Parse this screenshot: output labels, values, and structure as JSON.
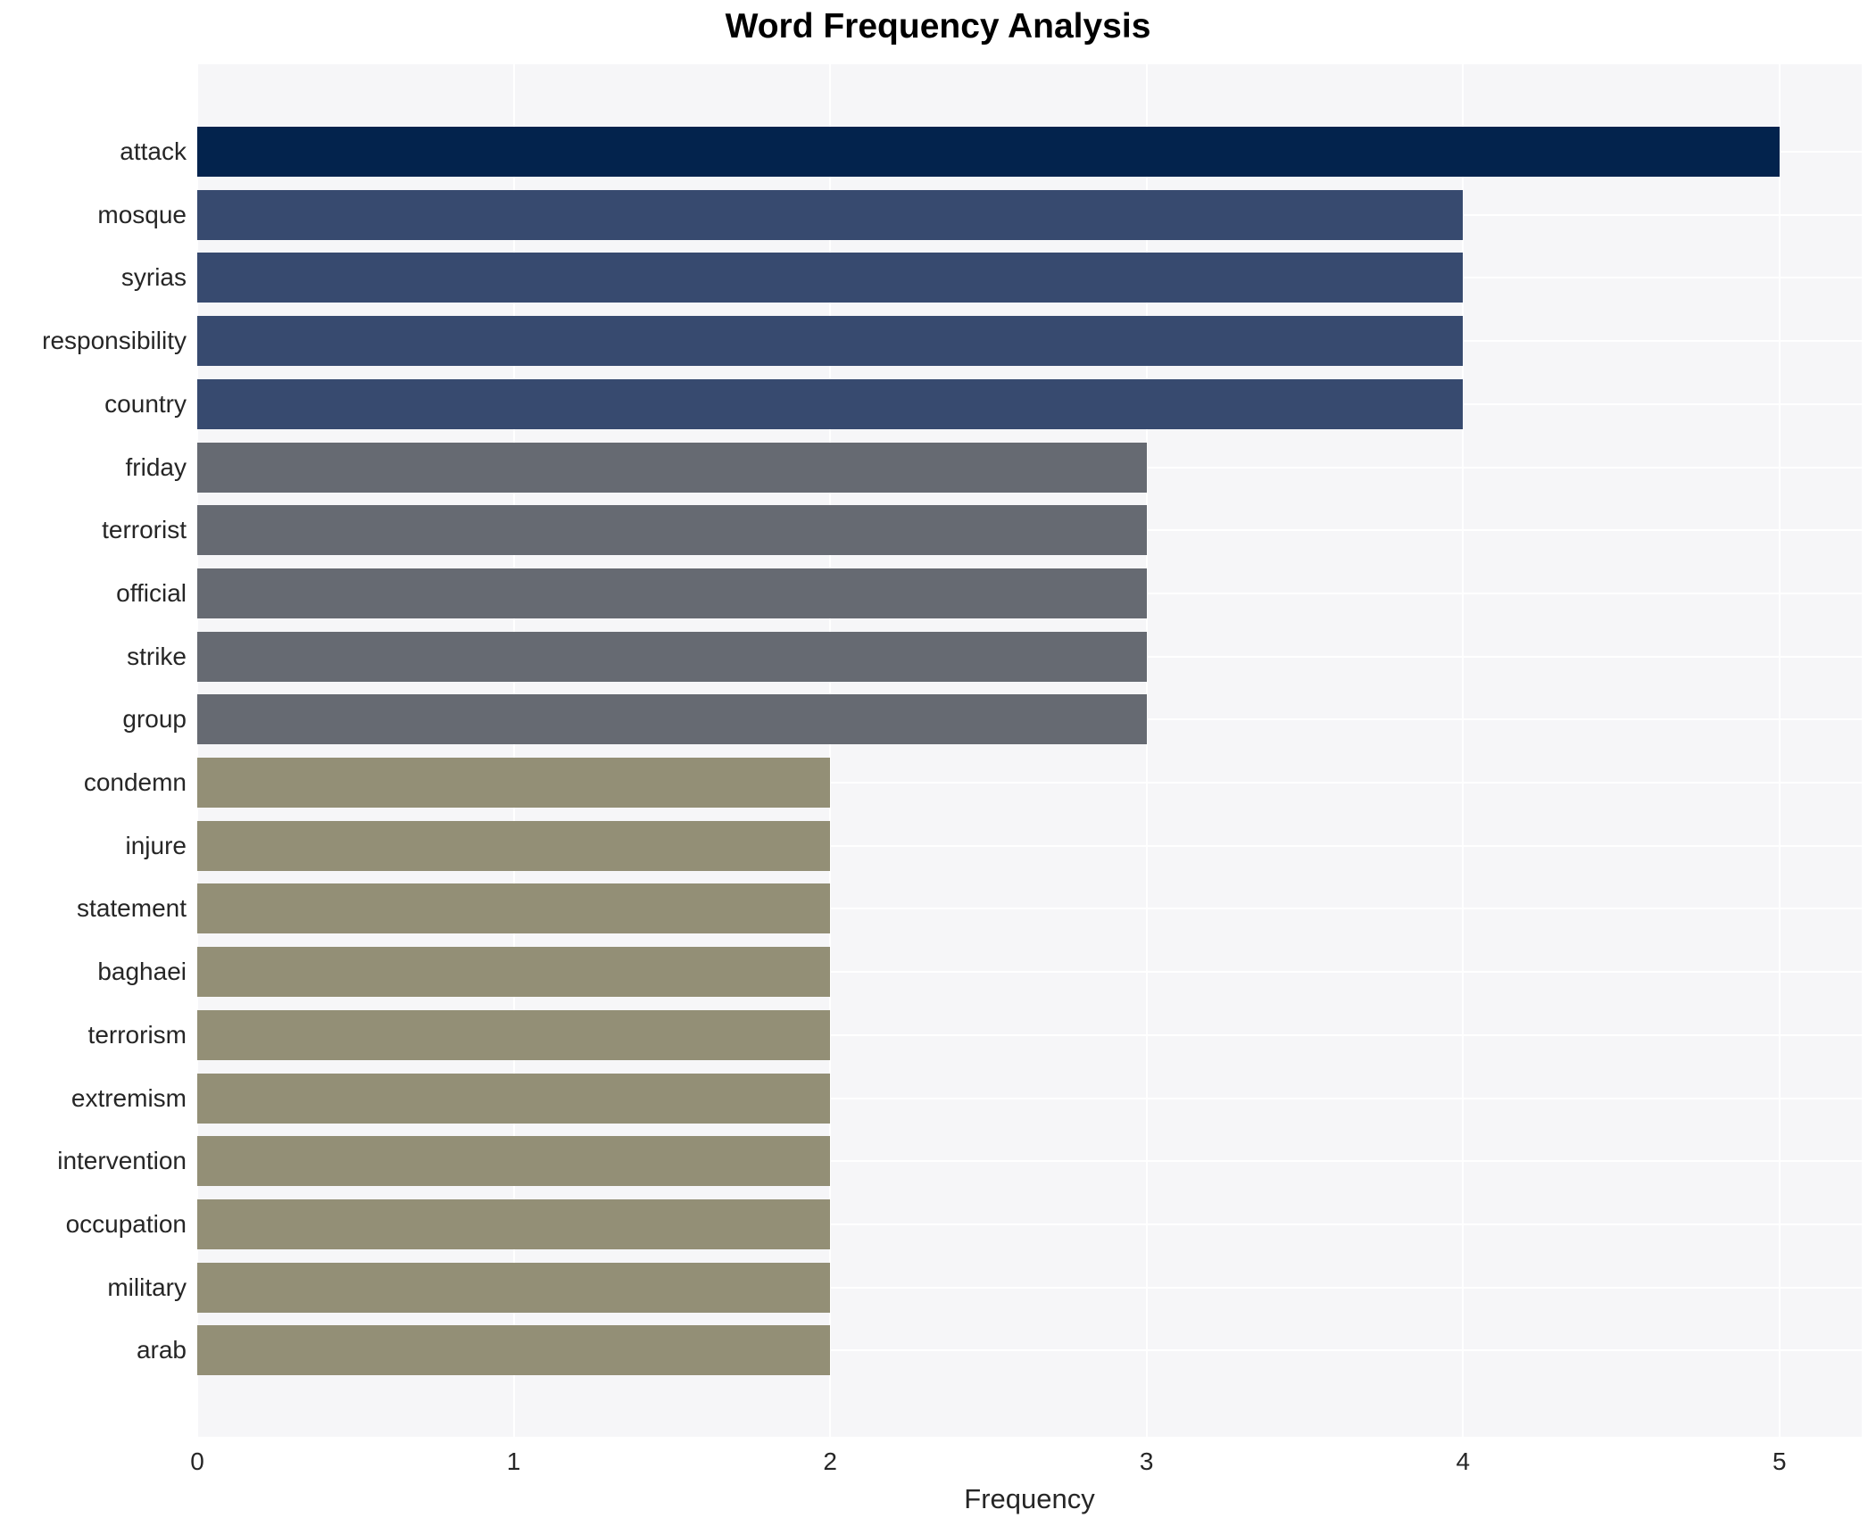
{
  "title": "Word Frequency Analysis",
  "chart_data": {
    "type": "bar",
    "orientation": "horizontal",
    "title": "Word Frequency Analysis",
    "xlabel": "Frequency",
    "ylabel": "",
    "xlim": [
      0,
      5.26
    ],
    "xticks": [
      0,
      1,
      2,
      3,
      4,
      5
    ],
    "grid": true,
    "legend": "none",
    "categories": [
      "attack",
      "mosque",
      "syrias",
      "responsibility",
      "country",
      "friday",
      "terrorist",
      "official",
      "strike",
      "group",
      "condemn",
      "injure",
      "statement",
      "baghaei",
      "terrorism",
      "extremism",
      "intervention",
      "occupation",
      "military",
      "arab"
    ],
    "values": [
      5,
      4,
      4,
      4,
      4,
      3,
      3,
      3,
      3,
      3,
      2,
      2,
      2,
      2,
      2,
      2,
      2,
      2,
      2,
      2
    ]
  },
  "colors": {
    "page_bg": "#ffffff",
    "plot_bg": "#f6f6f8",
    "grid": "#ffffff",
    "text": "#262626",
    "title_text": "#000000",
    "bar_color_by_value": {
      "5": "#03234d",
      "4": "#374a6f",
      "3": "#666a72",
      "2": "#938f76"
    }
  }
}
